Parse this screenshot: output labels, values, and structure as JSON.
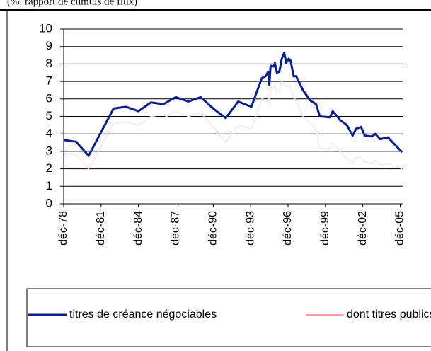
{
  "chart_data": {
    "type": "line",
    "subtitle": "(%, rapport de cumuls de flux)",
    "x": [
      1978,
      1979,
      1980,
      1981,
      1982,
      1983,
      1984,
      1985,
      1986,
      1987,
      1988,
      1989,
      1990,
      1991,
      1992,
      1993.06,
      1993.9,
      1994.2,
      1994.4,
      1994.5,
      1994.6,
      1994.85,
      1994.95,
      1995.1,
      1995.3,
      1995.5,
      1995.7,
      1995.85,
      1996.05,
      1996.2,
      1996.45,
      1996.65,
      1997.2,
      1997.8,
      1998.25,
      1998.55,
      1999.36,
      1999.59,
      2000.16,
      2000.73,
      2001.18,
      2001.47,
      2001.86,
      2002.15,
      2002.72,
      2003.0,
      2003.4,
      2004.02,
      2004.42,
      2004.82,
      2005.16
    ],
    "series": [
      {
        "name": "titres de créance négociables",
        "color": "#0a1f8f",
        "values": [
          3.65,
          3.55,
          2.75,
          4.1,
          5.45,
          5.55,
          5.3,
          5.8,
          5.7,
          6.1,
          5.85,
          6.1,
          5.45,
          4.9,
          5.85,
          5.55,
          7.2,
          7.3,
          7.55,
          6.8,
          7.9,
          7.85,
          8.05,
          7.5,
          7.55,
          8.3,
          8.65,
          8.05,
          8.3,
          8.2,
          7.3,
          7.3,
          6.5,
          5.9,
          5.7,
          5.0,
          4.95,
          5.3,
          4.8,
          4.5,
          3.9,
          4.3,
          4.4,
          3.9,
          3.85,
          4.0,
          3.7,
          3.8,
          3.5,
          3.2,
          2.95
        ]
      },
      {
        "name": "dont titres publics",
        "color": "#fbe3e3",
        "values": [
          2.9,
          2.8,
          2.0,
          3.3,
          4.6,
          4.7,
          4.5,
          5.0,
          4.9,
          5.3,
          5.0,
          5.2,
          4.4,
          3.5,
          4.5,
          4.3,
          6.0,
          6.1,
          6.2,
          5.6,
          6.7,
          6.6,
          6.8,
          6.3,
          6.4,
          7.0,
          6.8,
          6.7,
          6.8,
          6.75,
          6.1,
          5.9,
          5.0,
          4.6,
          4.3,
          3.2,
          3.1,
          3.5,
          3.0,
          2.6,
          2.3,
          2.6,
          2.7,
          2.4,
          2.3,
          2.5,
          2.2,
          2.3,
          2.15,
          2.1,
          2.0
        ]
      }
    ],
    "legend_line_color": "#ff4040",
    "xlim": [
      1978,
      2005.2
    ],
    "xticks": [
      {
        "value": 1978,
        "label": "déc-78"
      },
      {
        "value": 1981,
        "label": "déc-81"
      },
      {
        "value": 1984,
        "label": "déc-84"
      },
      {
        "value": 1987,
        "label": "déc-87"
      },
      {
        "value": 1990,
        "label": "déc-90"
      },
      {
        "value": 1993,
        "label": "déc-93"
      },
      {
        "value": 1996,
        "label": "déc-96"
      },
      {
        "value": 1999,
        "label": "déc-99"
      },
      {
        "value": 2002,
        "label": "déc-02"
      },
      {
        "value": 2005,
        "label": "déc-05"
      }
    ],
    "ylim": [
      0,
      10
    ],
    "yticks": [
      0,
      1,
      2,
      3,
      4,
      5,
      6,
      7,
      8,
      9,
      10
    ],
    "grid": true
  }
}
